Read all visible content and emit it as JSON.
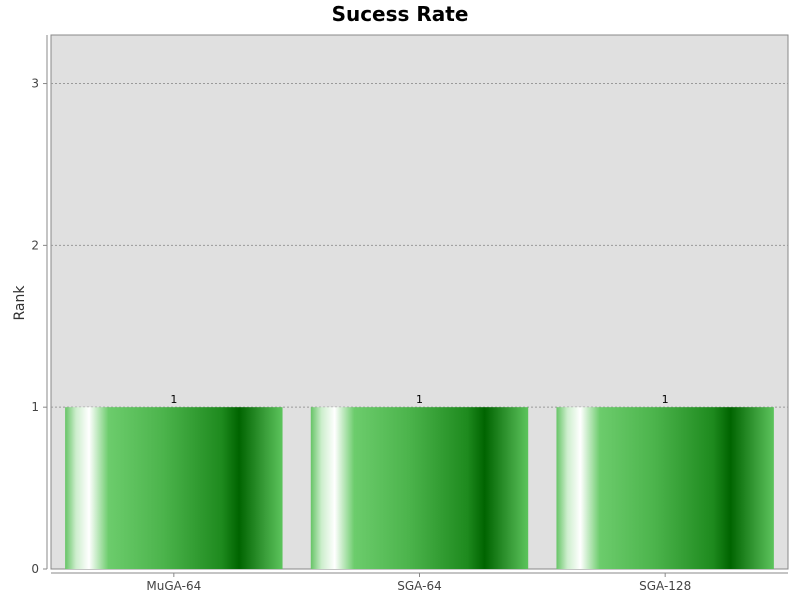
{
  "chart_data": {
    "type": "bar",
    "title": "Sucess Rate",
    "xlabel": "",
    "ylabel": "Rank",
    "categories": [
      "MuGA-64",
      "SGA-64",
      "SGA-128"
    ],
    "values": [
      1,
      1,
      1
    ],
    "data_labels": [
      "1",
      "1",
      "1"
    ],
    "ylim": [
      0,
      3.3
    ],
    "yticks": [
      0,
      1,
      2,
      3
    ],
    "ytick_labels": [
      "0",
      "1",
      "2",
      "3"
    ],
    "grid": true,
    "legend": "none",
    "colors": {
      "plot_background": "#e0e0e0",
      "bar_dark": "#006400",
      "bar_light": "#ffffff",
      "bar_mid": "#5cc45c",
      "gridline": "#999999"
    }
  }
}
